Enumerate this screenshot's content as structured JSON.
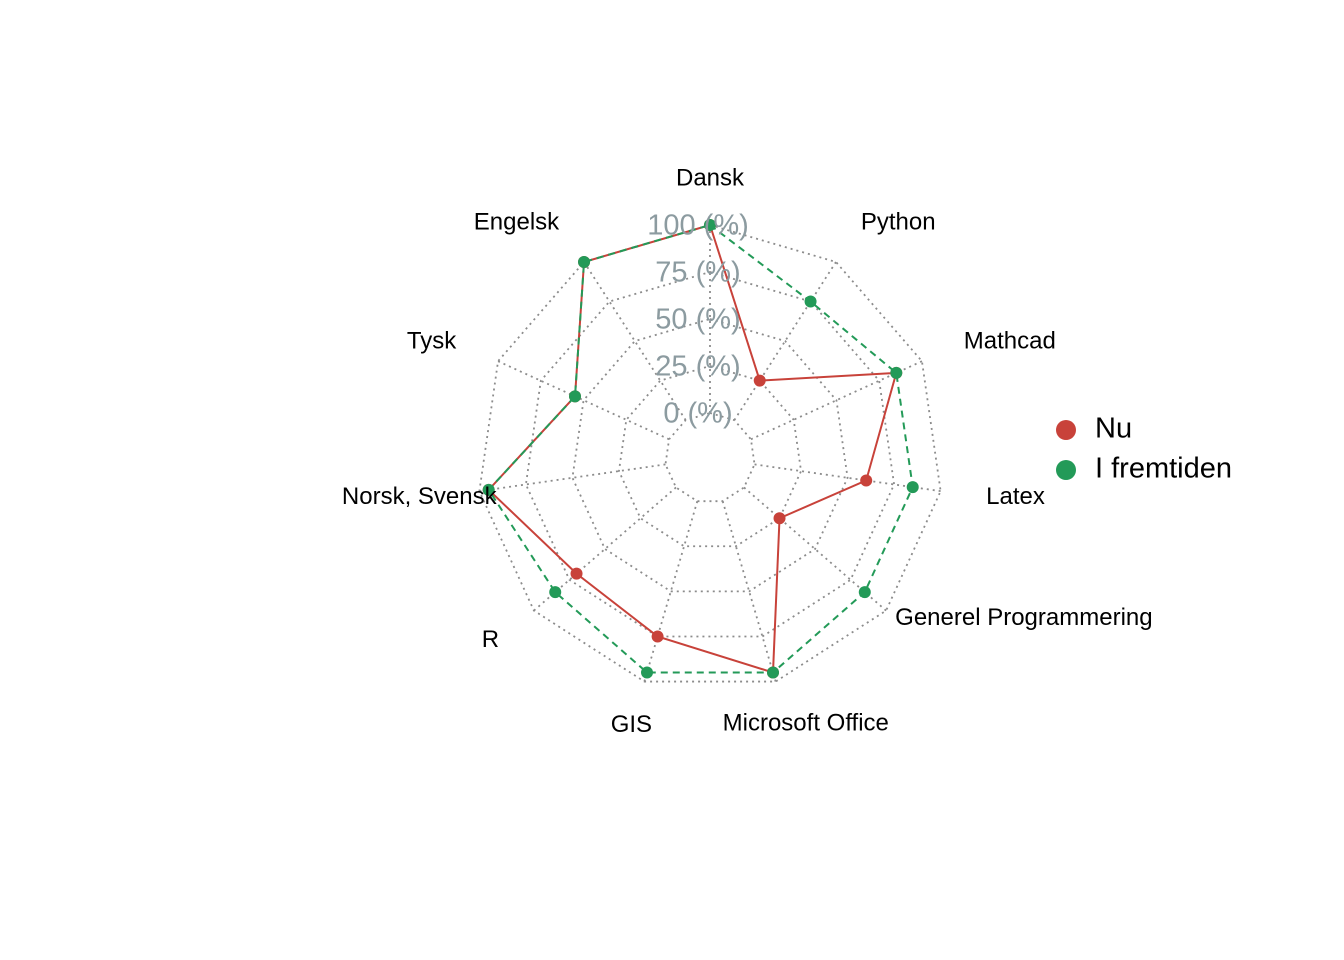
{
  "chart_data": {
    "type": "radar",
    "axes": [
      "Dansk",
      "Python",
      "Mathcad",
      "Latex",
      "Generel Programmering",
      "Microsoft Office",
      "GIS",
      "R",
      "Norsk, Svensk",
      "Tysk",
      "Engelsk"
    ],
    "grid_labels": [
      "0 (%)",
      "25 (%)",
      "50 (%)",
      "75 (%)",
      "100 (%)"
    ],
    "grid_values": [
      0,
      25,
      50,
      75,
      100
    ],
    "range": [
      0,
      100
    ],
    "series": [
      {
        "name": "Nu",
        "color": "#c8423a",
        "line_style": "solid",
        "values": [
          100,
          25,
          85,
          60,
          25,
          95,
          75,
          70,
          95,
          55,
          100
        ]
      },
      {
        "name": "I fremtiden",
        "color": "#239a58",
        "line_style": "dashed",
        "values": [
          100,
          75,
          85,
          85,
          85,
          95,
          95,
          85,
          95,
          55,
          100
        ]
      }
    ],
    "legend": {
      "position": "right"
    }
  }
}
